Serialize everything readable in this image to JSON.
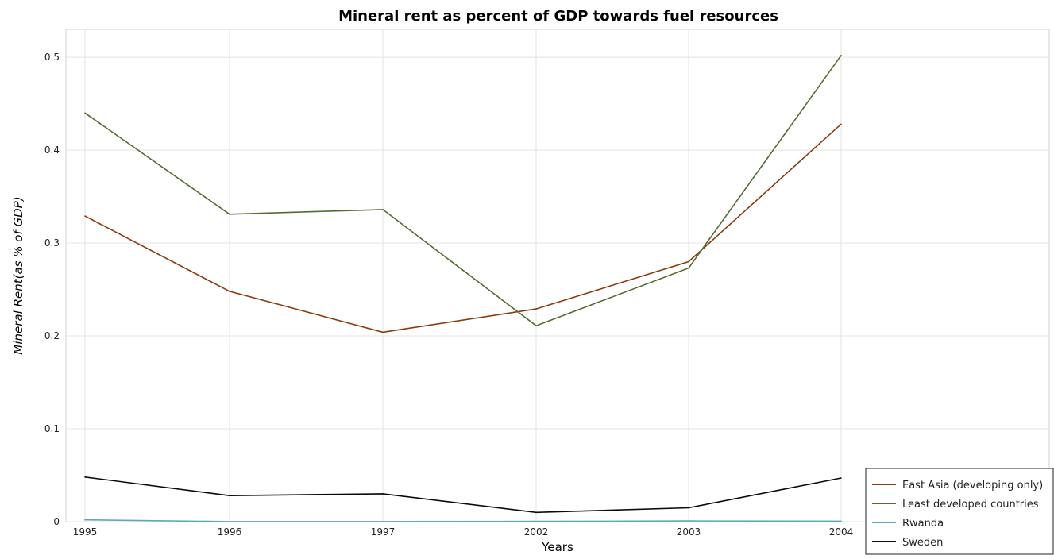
{
  "chart_data": {
    "type": "line",
    "title": "Mineral rent as percent of GDP towards fuel resources",
    "xlabel": "Years",
    "ylabel": "Mineral Rent(as % of GDP)",
    "categories": [
      "1995",
      "1996",
      "1997",
      "2002",
      "2003",
      "2004"
    ],
    "ylim": [
      0,
      0.53
    ],
    "yticks": [
      0,
      0.1,
      0.2,
      0.3,
      0.4,
      0.5
    ],
    "ytick_labels": [
      "0",
      "0.1",
      "0.2",
      "0.3",
      "0.4",
      "0.5"
    ],
    "grid": true,
    "legend_position": "bottom-right",
    "series": [
      {
        "name": "East Asia (developing only)",
        "color": "#8b3a0f",
        "values": [
          0.329,
          0.248,
          0.204,
          0.229,
          0.28,
          0.428
        ]
      },
      {
        "name": "Least developed countries",
        "color": "#556b2f",
        "values": [
          0.44,
          0.331,
          0.336,
          0.211,
          0.273,
          0.502
        ]
      },
      {
        "name": "Rwanda",
        "color": "#5fa8b5",
        "values": [
          0.002,
          0.0001,
          0.0001,
          0.0003,
          0.0008,
          0.0005
        ]
      },
      {
        "name": "Sweden",
        "color": "#0a0a0a",
        "values": [
          0.048,
          0.028,
          0.03,
          0.01,
          0.015,
          0.047
        ]
      }
    ]
  }
}
